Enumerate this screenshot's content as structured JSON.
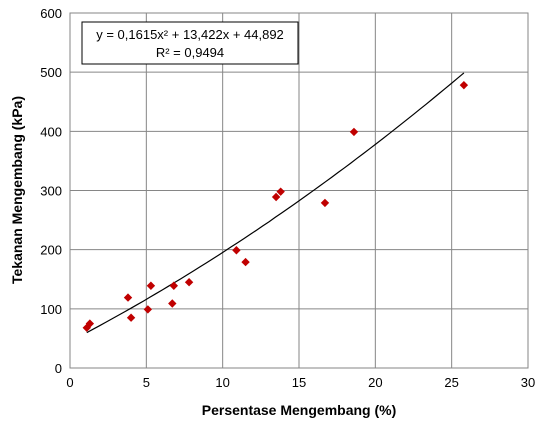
{
  "chart_data": {
    "type": "scatter",
    "xlabel": "Persentase Mengembang (%)",
    "ylabel": "Tekanan Mengembang (kPa)",
    "xlim": [
      0,
      30
    ],
    "ylim": [
      0,
      600
    ],
    "x_ticks": [
      "0",
      "5",
      "10",
      "15",
      "20",
      "25",
      "30"
    ],
    "y_ticks": [
      "0",
      "100",
      "200",
      "300",
      "400",
      "500",
      "600"
    ],
    "grid": "both",
    "marker_color": "#c00000",
    "trendline_color": "#000000",
    "series": [
      {
        "points": [
          {
            "x": 1.1,
            "y": 68
          },
          {
            "x": 1.3,
            "y": 75
          },
          {
            "x": 3.8,
            "y": 119
          },
          {
            "x": 4.0,
            "y": 85
          },
          {
            "x": 5.1,
            "y": 99
          },
          {
            "x": 5.3,
            "y": 139
          },
          {
            "x": 6.7,
            "y": 109
          },
          {
            "x": 6.8,
            "y": 139
          },
          {
            "x": 7.8,
            "y": 145
          },
          {
            "x": 10.9,
            "y": 199
          },
          {
            "x": 11.5,
            "y": 179
          },
          {
            "x": 13.5,
            "y": 289
          },
          {
            "x": 13.8,
            "y": 298
          },
          {
            "x": 16.7,
            "y": 279
          },
          {
            "x": 18.6,
            "y": 399
          },
          {
            "x": 25.8,
            "y": 478
          }
        ]
      }
    ],
    "trendline": {
      "type": "polynomial",
      "coefficients": {
        "a": 0.1615,
        "b": 13.422,
        "c": 44.892
      },
      "x_range": [
        1.1,
        25.8
      ],
      "equation_label": "y = 0,1615x² + 13,422x + 44,892",
      "r2_label": "R² = 0,9494"
    }
  }
}
